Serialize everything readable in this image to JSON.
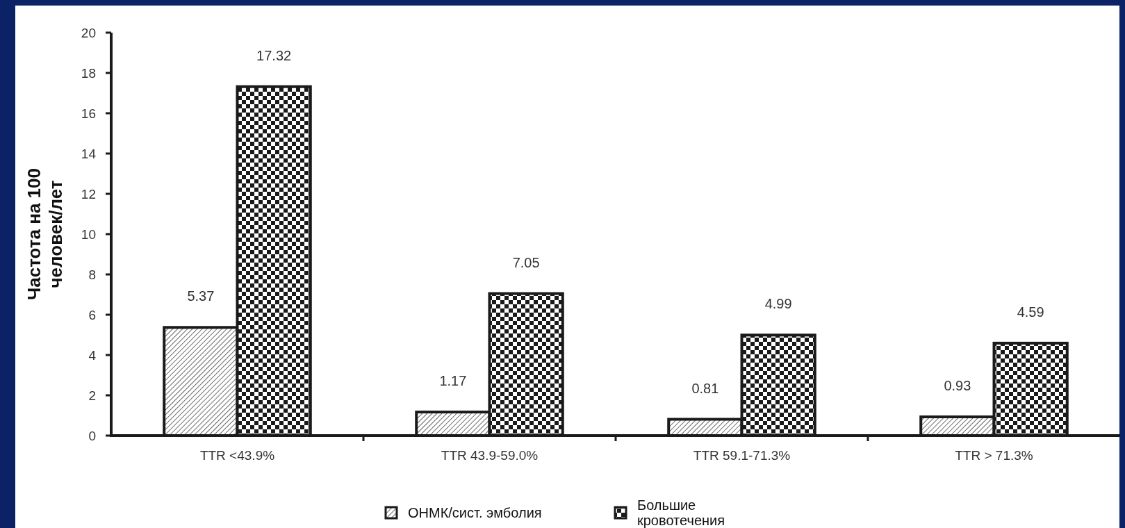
{
  "chart_data": {
    "type": "bar",
    "ylabel": "Частота на 100 человек/лет",
    "categories": [
      "TTR <43.9%",
      "TTR 43.9-59.0%",
      "TTR 59.1-71.3%",
      "TTR > 71.3%"
    ],
    "series": [
      {
        "name": "ОНМК/сист. эмболия",
        "color": "#1a1a1a",
        "values": [
          5.37,
          1.17,
          0.81,
          0.93
        ]
      },
      {
        "name": "Большие кровотечения",
        "color": "#1a1a1a",
        "values": [
          17.32,
          7.05,
          4.99,
          4.59
        ]
      }
    ],
    "ylim": [
      0,
      20
    ],
    "yticks": [
      0,
      2,
      4,
      6,
      8,
      10,
      12,
      14,
      16,
      18,
      20
    ],
    "data_labels": true,
    "legend": "bottom",
    "grid": false
  }
}
